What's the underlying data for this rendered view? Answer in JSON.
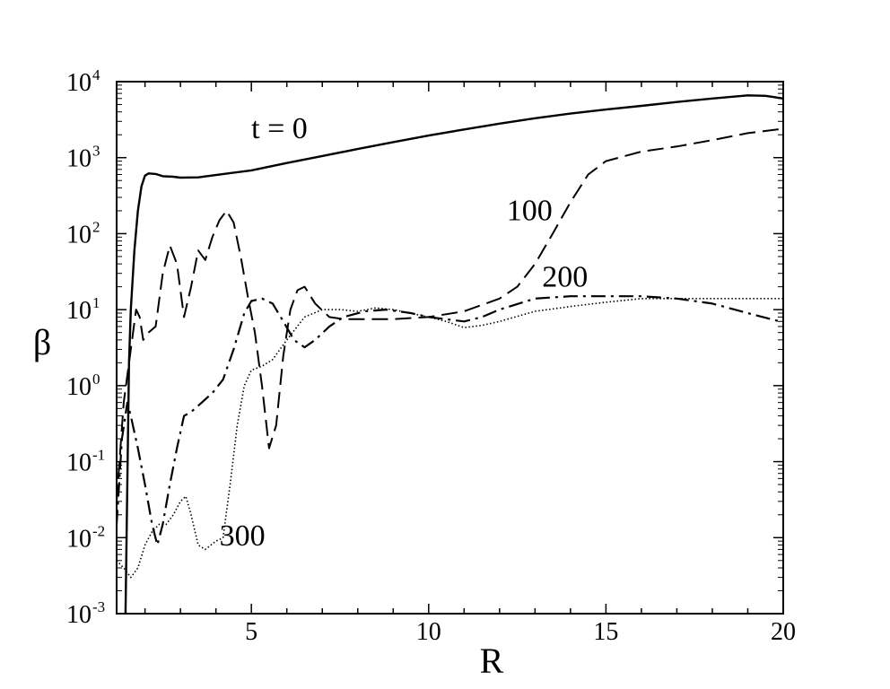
{
  "chart_data": {
    "type": "line",
    "xlabel": "R",
    "ylabel": "β",
    "xlim": [
      1.2,
      20
    ],
    "ylim_log10": [
      -3,
      4
    ],
    "y_scale": "log",
    "grid": false,
    "x_ticks": [
      {
        "value": 5,
        "label": "5"
      },
      {
        "value": 10,
        "label": "10"
      },
      {
        "value": 15,
        "label": "15"
      },
      {
        "value": 20,
        "label": "20"
      }
    ],
    "y_ticks": [
      {
        "exp": -3,
        "base": "10",
        "sup": "-3"
      },
      {
        "exp": -2,
        "base": "10",
        "sup": "-2"
      },
      {
        "exp": -1,
        "base": "10",
        "sup": "-1"
      },
      {
        "exp": 0,
        "base": "10",
        "sup": "0"
      },
      {
        "exp": 1,
        "base": "10",
        "sup": "1"
      },
      {
        "exp": 2,
        "base": "10",
        "sup": "2"
      },
      {
        "exp": 3,
        "base": "10",
        "sup": "3"
      },
      {
        "exp": 4,
        "base": "10",
        "sup": "4"
      }
    ],
    "annotations": [
      {
        "text": "t = 0",
        "series": 0
      },
      {
        "text": "100",
        "series": 1
      },
      {
        "text": "200",
        "series": 2
      },
      {
        "text": "300",
        "series": 3
      }
    ],
    "series": [
      {
        "style": "solid",
        "points": [
          [
            1.45,
            0.001
          ],
          [
            1.5,
            0.05
          ],
          [
            1.55,
            2
          ],
          [
            1.6,
            10
          ],
          [
            1.7,
            60
          ],
          [
            1.8,
            200
          ],
          [
            1.9,
            420
          ],
          [
            2.0,
            580
          ],
          [
            2.1,
            620
          ],
          [
            2.3,
            610
          ],
          [
            2.5,
            570
          ],
          [
            2.8,
            560
          ],
          [
            3.0,
            545
          ],
          [
            3.5,
            550
          ],
          [
            4.0,
            590
          ],
          [
            5.0,
            680
          ],
          [
            6.0,
            850
          ],
          [
            7.0,
            1050
          ],
          [
            8.0,
            1300
          ],
          [
            9.0,
            1600
          ],
          [
            10.0,
            1950
          ],
          [
            11.0,
            2350
          ],
          [
            12.0,
            2800
          ],
          [
            13.0,
            3300
          ],
          [
            14.0,
            3800
          ],
          [
            15.0,
            4300
          ],
          [
            16.0,
            4800
          ],
          [
            17.0,
            5400
          ],
          [
            18.0,
            6000
          ],
          [
            19.0,
            6600
          ],
          [
            19.5,
            6500
          ],
          [
            20.0,
            6000
          ]
        ]
      },
      {
        "style": "dashed",
        "points": [
          [
            1.2,
            0.03
          ],
          [
            1.4,
            0.6
          ],
          [
            1.6,
            3
          ],
          [
            1.75,
            10
          ],
          [
            1.85,
            8
          ],
          [
            1.95,
            4
          ],
          [
            2.1,
            5
          ],
          [
            2.3,
            6
          ],
          [
            2.5,
            30
          ],
          [
            2.7,
            70
          ],
          [
            2.9,
            40
          ],
          [
            3.1,
            8
          ],
          [
            3.3,
            20
          ],
          [
            3.5,
            60
          ],
          [
            3.7,
            45
          ],
          [
            3.9,
            90
          ],
          [
            4.1,
            150
          ],
          [
            4.3,
            200
          ],
          [
            4.5,
            140
          ],
          [
            4.7,
            50
          ],
          [
            4.9,
            15
          ],
          [
            5.1,
            5
          ],
          [
            5.3,
            1
          ],
          [
            5.5,
            0.15
          ],
          [
            5.7,
            0.3
          ],
          [
            5.9,
            2.5
          ],
          [
            6.1,
            10
          ],
          [
            6.3,
            18
          ],
          [
            6.5,
            20
          ],
          [
            6.8,
            12
          ],
          [
            7.2,
            8
          ],
          [
            7.6,
            7.5
          ],
          [
            8,
            7.5
          ],
          [
            9,
            7.5
          ],
          [
            10,
            8
          ],
          [
            11,
            9.5
          ],
          [
            12,
            14
          ],
          [
            12.5,
            20
          ],
          [
            13,
            40
          ],
          [
            13.5,
            100
          ],
          [
            14,
            260
          ],
          [
            14.5,
            600
          ],
          [
            15,
            900
          ],
          [
            16,
            1200
          ],
          [
            17,
            1400
          ],
          [
            18,
            1700
          ],
          [
            19,
            2100
          ],
          [
            20,
            2400
          ]
        ]
      },
      {
        "style": "dashdot",
        "points": [
          [
            1.2,
            0.015
          ],
          [
            1.35,
            0.2
          ],
          [
            1.5,
            0.6
          ],
          [
            1.6,
            0.4
          ],
          [
            1.8,
            0.15
          ],
          [
            2.0,
            0.05
          ],
          [
            2.2,
            0.015
          ],
          [
            2.35,
            0.008
          ],
          [
            2.5,
            0.015
          ],
          [
            2.7,
            0.05
          ],
          [
            2.9,
            0.15
          ],
          [
            3.1,
            0.4
          ],
          [
            3.3,
            0.45
          ],
          [
            3.6,
            0.6
          ],
          [
            3.9,
            0.8
          ],
          [
            4.2,
            1.2
          ],
          [
            4.5,
            3
          ],
          [
            4.8,
            9
          ],
          [
            5.0,
            13
          ],
          [
            5.3,
            14
          ],
          [
            5.6,
            12
          ],
          [
            5.9,
            7
          ],
          [
            6.2,
            4
          ],
          [
            6.5,
            3.2
          ],
          [
            6.8,
            4
          ],
          [
            7.2,
            6
          ],
          [
            7.6,
            8
          ],
          [
            8.2,
            9.5
          ],
          [
            8.8,
            10
          ],
          [
            9.5,
            9
          ],
          [
            10,
            8
          ],
          [
            11,
            7
          ],
          [
            11.5,
            8
          ],
          [
            12,
            10
          ],
          [
            13,
            14
          ],
          [
            14,
            15
          ],
          [
            15,
            15
          ],
          [
            16,
            15
          ],
          [
            17,
            14
          ],
          [
            18,
            12
          ],
          [
            19,
            9
          ],
          [
            20,
            6.8
          ]
        ]
      },
      {
        "style": "dotted",
        "points": [
          [
            1.2,
            0.005
          ],
          [
            1.4,
            0.004
          ],
          [
            1.6,
            0.003
          ],
          [
            1.8,
            0.004
          ],
          [
            2.0,
            0.008
          ],
          [
            2.2,
            0.012
          ],
          [
            2.4,
            0.015
          ],
          [
            2.6,
            0.015
          ],
          [
            2.8,
            0.02
          ],
          [
            3.0,
            0.03
          ],
          [
            3.15,
            0.035
          ],
          [
            3.3,
            0.02
          ],
          [
            3.5,
            0.008
          ],
          [
            3.7,
            0.007
          ],
          [
            4.0,
            0.009
          ],
          [
            4.2,
            0.01
          ],
          [
            4.4,
            0.05
          ],
          [
            4.6,
            0.3
          ],
          [
            4.8,
            1
          ],
          [
            5.0,
            1.6
          ],
          [
            5.3,
            1.8
          ],
          [
            5.6,
            2.2
          ],
          [
            6.0,
            4
          ],
          [
            6.5,
            8
          ],
          [
            7.0,
            10
          ],
          [
            7.5,
            10
          ],
          [
            8,
            9.5
          ],
          [
            8.5,
            10.5
          ],
          [
            9,
            10
          ],
          [
            10,
            8
          ],
          [
            10.5,
            7
          ],
          [
            11,
            5.8
          ],
          [
            11.5,
            6.2
          ],
          [
            12,
            7
          ],
          [
            13,
            9.5
          ],
          [
            14,
            11
          ],
          [
            15,
            12.5
          ],
          [
            16,
            14
          ],
          [
            17,
            14
          ],
          [
            18,
            14
          ],
          [
            19,
            14
          ],
          [
            20,
            14
          ]
        ]
      }
    ]
  }
}
